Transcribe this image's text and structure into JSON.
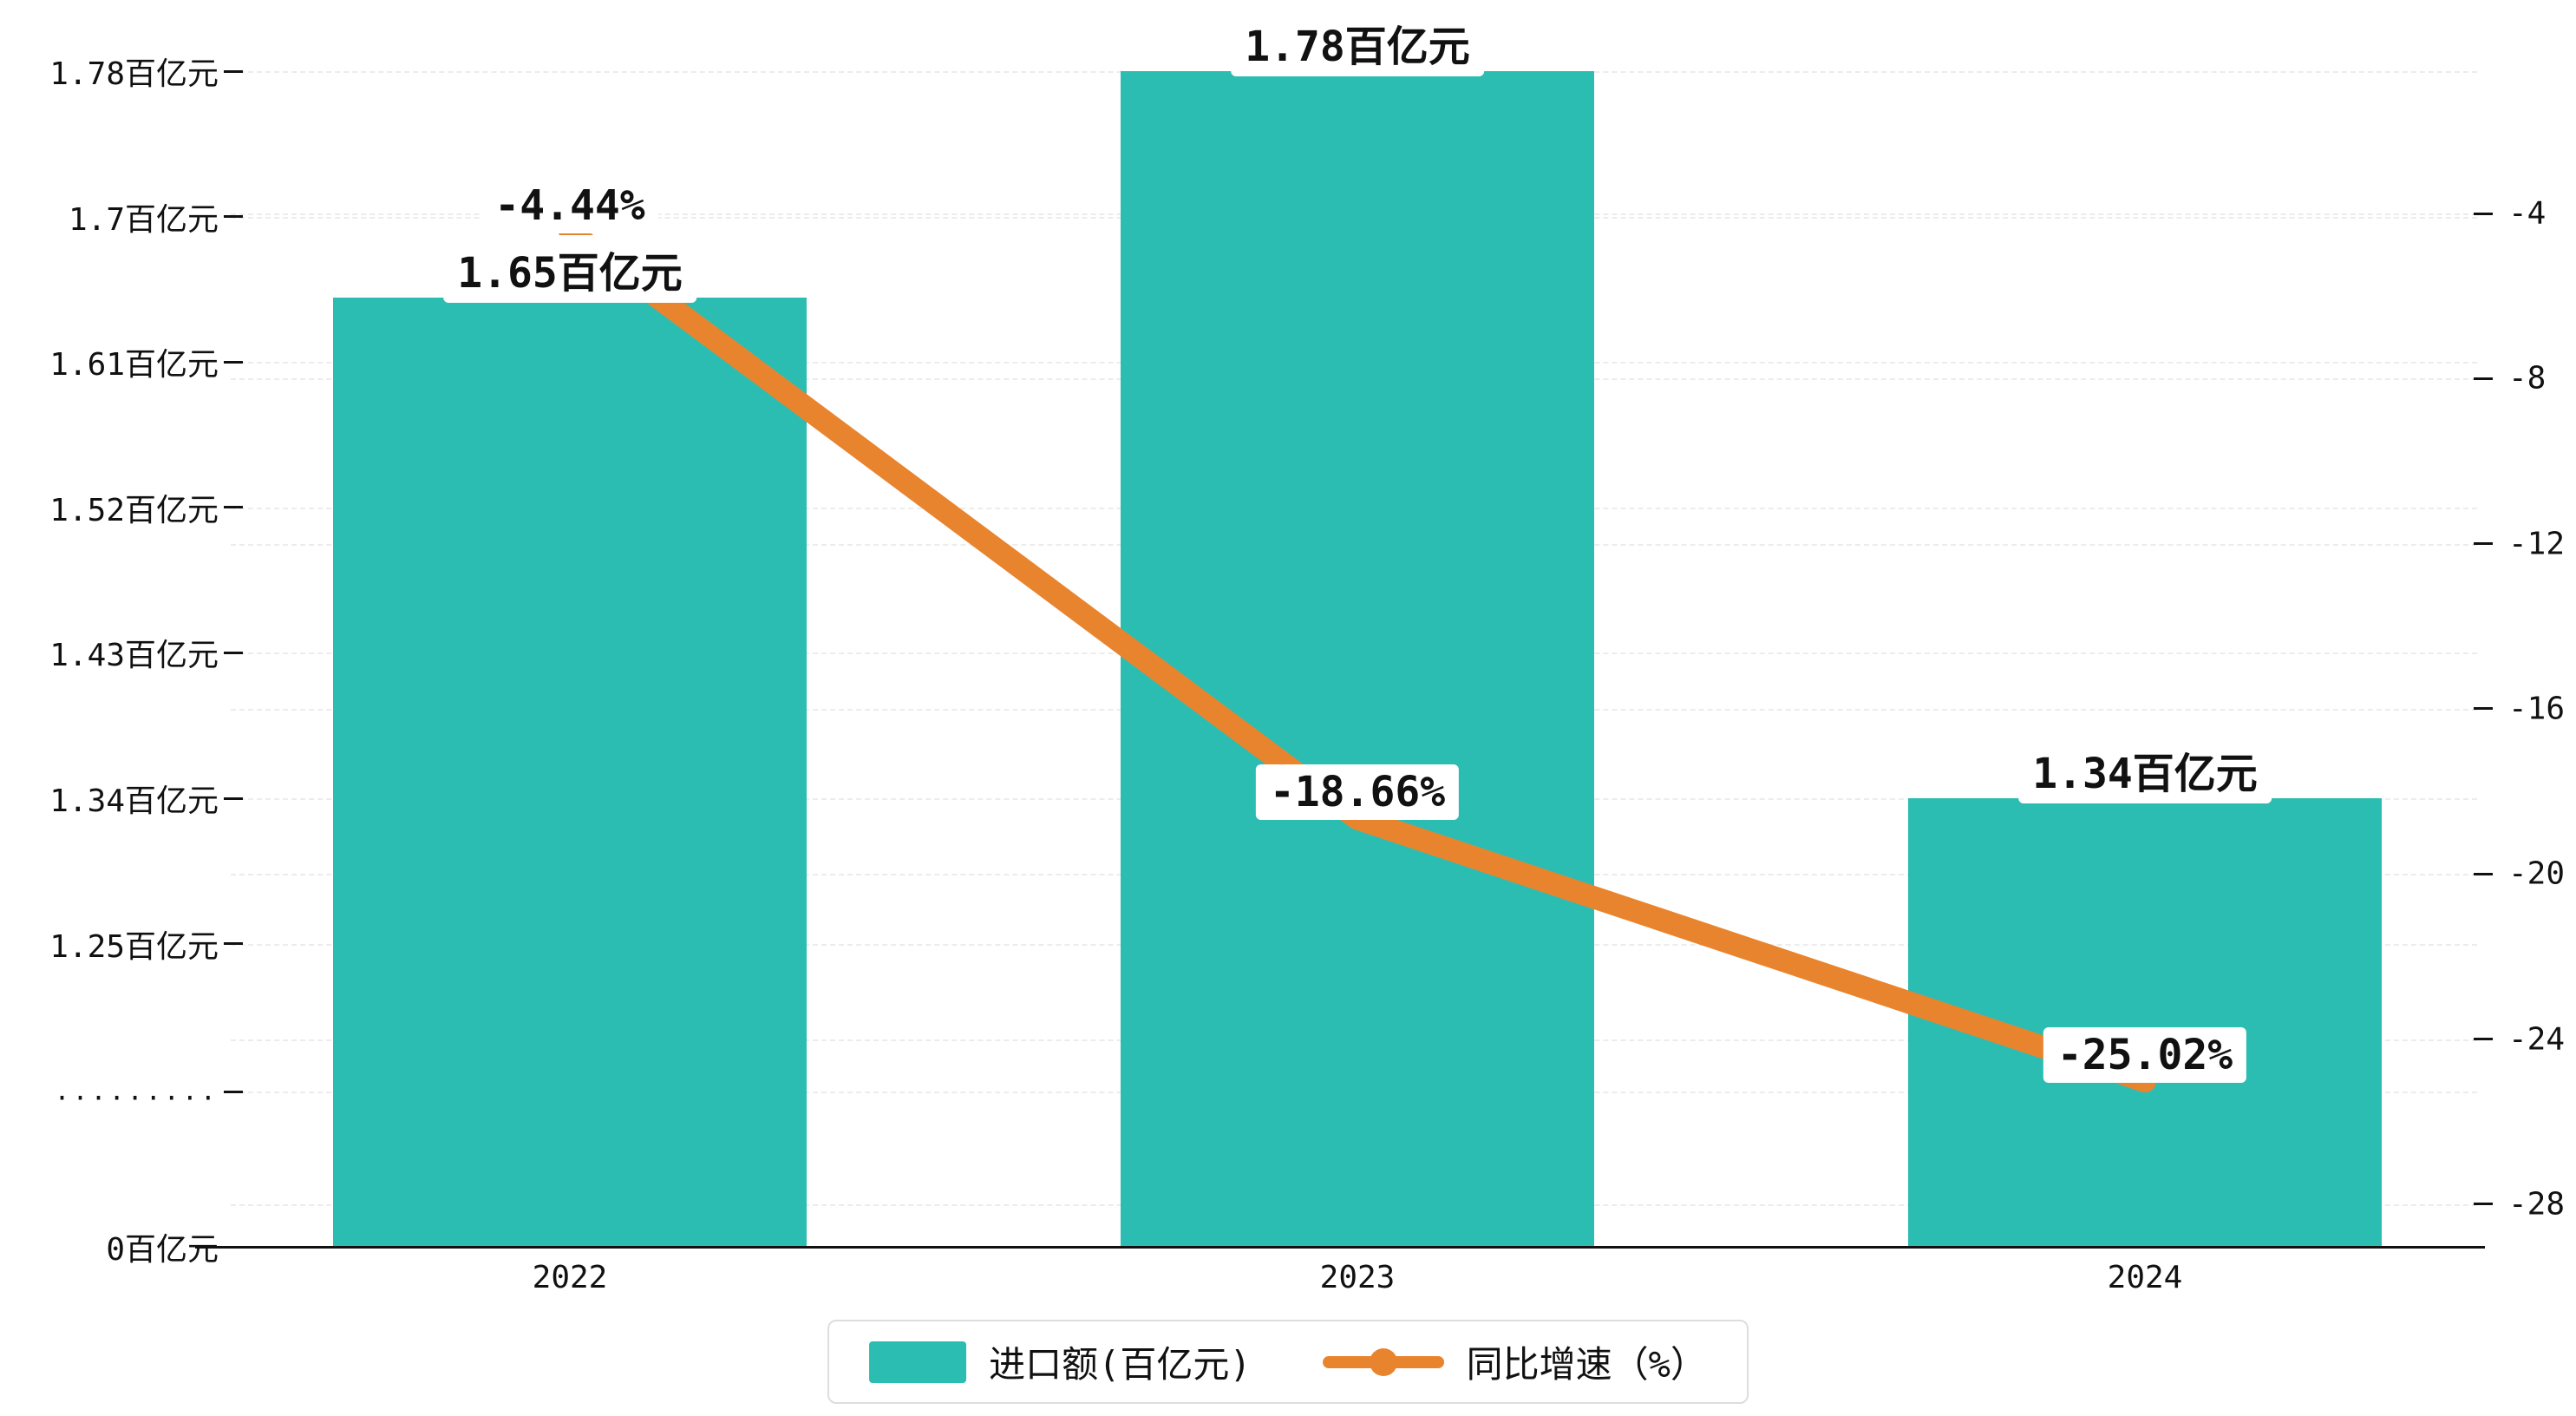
{
  "chart_data": {
    "type": "bar",
    "combo": "bar+line",
    "categories": [
      "2022",
      "2023",
      "2024"
    ],
    "series": [
      {
        "name": "进口额(百亿元)",
        "type": "bar",
        "axis": "left",
        "values": [
          1.65,
          1.78,
          1.34
        ],
        "labels": [
          "1.65百亿元",
          "1.78百亿元",
          "1.34百亿元"
        ],
        "color": "#2cbdb2"
      },
      {
        "name": "同比增速（%）",
        "type": "line",
        "axis": "right",
        "values": [
          -4.44,
          -18.66,
          -25.02
        ],
        "labels": [
          "-4.44%",
          "-18.66%",
          "-25.02%"
        ],
        "color": "#e8842e"
      }
    ],
    "left_axis": {
      "ticks": [
        {
          "v": 1.78,
          "label": "1.78百亿元"
        },
        {
          "v": 1.7,
          "label": "1.7百亿元"
        },
        {
          "v": 1.61,
          "label": "1.61百亿元"
        },
        {
          "v": 1.52,
          "label": "1.52百亿元"
        },
        {
          "v": 1.43,
          "label": "1.43百亿元"
        },
        {
          "v": 1.34,
          "label": "1.34百亿元"
        },
        {
          "v": 1.25,
          "label": "1.25百亿元"
        }
      ],
      "break_label": ".........",
      "zero_label": "0百亿元",
      "has_break": true
    },
    "right_axis": {
      "ticks": [
        {
          "v": -4,
          "label": "-4"
        },
        {
          "v": -8,
          "label": "-8"
        },
        {
          "v": -12,
          "label": "-12"
        },
        {
          "v": -16,
          "label": "-16"
        },
        {
          "v": -20,
          "label": "-20"
        },
        {
          "v": -24,
          "label": "-24"
        },
        {
          "v": -28,
          "label": "-28"
        }
      ]
    },
    "grid": true,
    "legend_position": "bottom"
  },
  "colors": {
    "bar": "#2cbdb2",
    "line": "#e8842e",
    "grid": "#ececec",
    "axis": "#111111",
    "text": "#111111",
    "background": "#ffffff"
  }
}
